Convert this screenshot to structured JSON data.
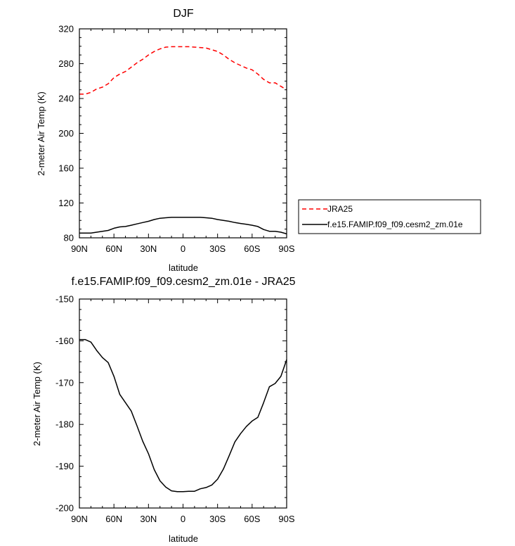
{
  "chart_data": [
    {
      "type": "line",
      "title": "DJF",
      "xlabel": "latitude",
      "ylabel": "2-meter Air Temp (K)",
      "xlim": [
        90,
        -90
      ],
      "ylim": [
        80,
        320
      ],
      "xtick_values": [
        90,
        60,
        30,
        0,
        -30,
        -60,
        -90
      ],
      "xtick_labels": [
        "90N",
        "60N",
        "30N",
        "0",
        "30S",
        "60S",
        "90S"
      ],
      "yticks": [
        80,
        120,
        160,
        200,
        240,
        280,
        320
      ],
      "grid": false,
      "legend_position": "right",
      "series": [
        {
          "name": "JRA25",
          "color": "#ff0000",
          "dash": "dashed",
          "x": [
            90,
            85,
            80,
            75,
            70,
            65,
            60,
            55,
            50,
            45,
            40,
            35,
            30,
            25,
            20,
            15,
            10,
            5,
            0,
            -5,
            -10,
            -15,
            -20,
            -25,
            -30,
            -35,
            -40,
            -45,
            -50,
            -55,
            -60,
            -65,
            -70,
            -75,
            -80,
            -85,
            -90
          ],
          "y": [
            245,
            245,
            247,
            251,
            253,
            257,
            264,
            268,
            271,
            276,
            281,
            285,
            290,
            294,
            297,
            299,
            299.5,
            299.5,
            299.5,
            299.5,
            299,
            298.5,
            298,
            296,
            294,
            290,
            285,
            281,
            278,
            275,
            273,
            268,
            262,
            258,
            258,
            254,
            250
          ]
        },
        {
          "name": "f.e15.FAMIP.f09_f09.cesm2_zm.01e",
          "color": "#000000",
          "dash": "solid",
          "x": [
            90,
            85,
            80,
            75,
            70,
            65,
            60,
            55,
            50,
            45,
            40,
            35,
            30,
            25,
            20,
            15,
            10,
            5,
            0,
            -5,
            -10,
            -15,
            -20,
            -25,
            -30,
            -35,
            -40,
            -45,
            -50,
            -55,
            -60,
            -65,
            -70,
            -75,
            -80,
            -85,
            -90
          ],
          "y": [
            85.5,
            85.5,
            85.5,
            86.5,
            87.5,
            88.5,
            91,
            92.5,
            93,
            94.5,
            96,
            97.5,
            99,
            101,
            102.5,
            103,
            103.5,
            103.5,
            103.5,
            103.5,
            103.5,
            103.5,
            103,
            102.5,
            101,
            100,
            99,
            97.5,
            96.5,
            95.5,
            94.5,
            93,
            89.5,
            87.5,
            87.5,
            86.5,
            84.5
          ]
        }
      ]
    },
    {
      "type": "line",
      "title": "f.e15.FAMIP.f09_f09.cesm2_zm.01e - JRA25",
      "xlabel": "latitude",
      "ylabel": "2-meter Air Temp (K)",
      "xlim": [
        90,
        -90
      ],
      "ylim": [
        -200,
        -150
      ],
      "xtick_values": [
        90,
        60,
        30,
        0,
        -30,
        -60,
        -90
      ],
      "xtick_labels": [
        "90N",
        "60N",
        "30N",
        "0",
        "30S",
        "60S",
        "90S"
      ],
      "yticks": [
        -200,
        -190,
        -180,
        -170,
        -160,
        -150
      ],
      "grid": false,
      "series": [
        {
          "color": "#000000",
          "dash": "solid",
          "x": [
            90,
            85,
            80,
            75,
            70,
            65,
            60,
            55,
            50,
            45,
            40,
            35,
            30,
            25,
            20,
            15,
            10,
            5,
            0,
            -5,
            -10,
            -15,
            -20,
            -25,
            -30,
            -35,
            -40,
            -45,
            -50,
            -55,
            -60,
            -65,
            -70,
            -75,
            -80,
            -85,
            -90
          ],
          "y": [
            -159.7,
            -159.7,
            -160.3,
            -162.3,
            -164,
            -165.2,
            -168.5,
            -172.8,
            -174.8,
            -176.8,
            -180.3,
            -184,
            -187,
            -190.8,
            -193.5,
            -195,
            -195.9,
            -196.1,
            -196.1,
            -196.0,
            -196.0,
            -195.4,
            -195.1,
            -194.5,
            -193.1,
            -190.7,
            -187.5,
            -184.2,
            -182.2,
            -180.5,
            -179.2,
            -178.3,
            -174.8,
            -171,
            -170.2,
            -168.5,
            -164.5
          ]
        }
      ]
    }
  ]
}
